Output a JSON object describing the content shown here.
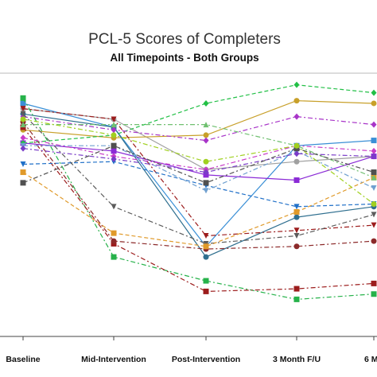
{
  "chart_data": {
    "type": "line",
    "title": "PCL-5 Scores of Completers",
    "subtitle": "All Timepoints - Both Groups",
    "xlabel": "",
    "ylabel": "",
    "categories": [
      "Baseline",
      "Mid-Intervention",
      "Post-Intervention",
      "3 Month F/U",
      "6 M"
    ],
    "ylim": [
      0,
      100
    ],
    "grid": false,
    "legend": "none",
    "series": [
      {
        "color": "#a0a0a0",
        "dash": "solid",
        "marker": "circle",
        "values": [
          86,
          82,
          63,
          66,
          68
        ]
      },
      {
        "color": "#c8a02a",
        "dash": "solid",
        "marker": "circle",
        "values": [
          78,
          75,
          76,
          89,
          88
        ]
      },
      {
        "color": "#3a8fd6",
        "dash": "solid",
        "marker": "square",
        "values": [
          88,
          79,
          34,
          72,
          74
        ]
      },
      {
        "color": "#8b2bd6",
        "dash": "solid",
        "marker": "square",
        "values": [
          73,
          70,
          61,
          59,
          68
        ]
      },
      {
        "color": "#2f6f8f",
        "dash": "solid",
        "marker": "circle",
        "values": [
          84,
          79,
          30,
          45,
          49
        ]
      },
      {
        "color": "#22c046",
        "dash": "dash",
        "marker": "diamond",
        "values": [
          73,
          76,
          88,
          95,
          92
        ]
      },
      {
        "color": "#9c1c1c",
        "dash": "dashdot",
        "marker": "triangle-down",
        "values": [
          86,
          82,
          38,
          40,
          42
        ]
      },
      {
        "color": "#a834c8",
        "dash": "dashdot",
        "marker": "diamond",
        "values": [
          83,
          78,
          74,
          83,
          80
        ]
      },
      {
        "color": "#5c5c5c",
        "dash": "dashdot",
        "marker": "triangle-down",
        "values": [
          84,
          49,
          35,
          38,
          46
        ]
      },
      {
        "color": "#26b24a",
        "dash": "dashdot",
        "marker": "square",
        "values": [
          90,
          30,
          21,
          14,
          16
        ]
      },
      {
        "color": "#9c1c1c",
        "dash": "dashdot",
        "marker": "square",
        "values": [
          79,
          35,
          17,
          18,
          20
        ]
      },
      {
        "color": "#2070c8",
        "dash": "dash",
        "marker": "triangle-down",
        "values": [
          65,
          66,
          57,
          49,
          50
        ]
      },
      {
        "color": "#8c2a2a",
        "dash": "dashdot",
        "marker": "circle",
        "values": [
          81,
          36,
          33,
          34,
          36
        ]
      },
      {
        "color": "#e09a2a",
        "dash": "dash",
        "marker": "square",
        "values": [
          62,
          39,
          34,
          47,
          60
        ]
      },
      {
        "color": "#70a0d0",
        "dash": "dashdot",
        "marker": "triangle-down",
        "values": [
          72,
          72,
          55,
          70,
          56
        ]
      },
      {
        "color": "#c83cc8",
        "dash": "dashdot",
        "marker": "diamond",
        "values": [
          75,
          68,
          63,
          72,
          70
        ]
      },
      {
        "color": "#7a3cc8",
        "dash": "dashdot",
        "marker": "diamond",
        "values": [
          71,
          67,
          62,
          69,
          68
        ]
      },
      {
        "color": "#70c070",
        "dash": "dashdot",
        "marker": "triangle-up",
        "values": [
          80,
          80,
          80,
          72,
          60
        ]
      },
      {
        "color": "#505050",
        "dash": "dashdot",
        "marker": "square",
        "values": [
          58,
          72,
          58,
          71,
          62
        ]
      },
      {
        "color": "#a0d020",
        "dash": "dashdot",
        "marker": "circle",
        "values": [
          82,
          76,
          66,
          72,
          50
        ]
      }
    ]
  }
}
